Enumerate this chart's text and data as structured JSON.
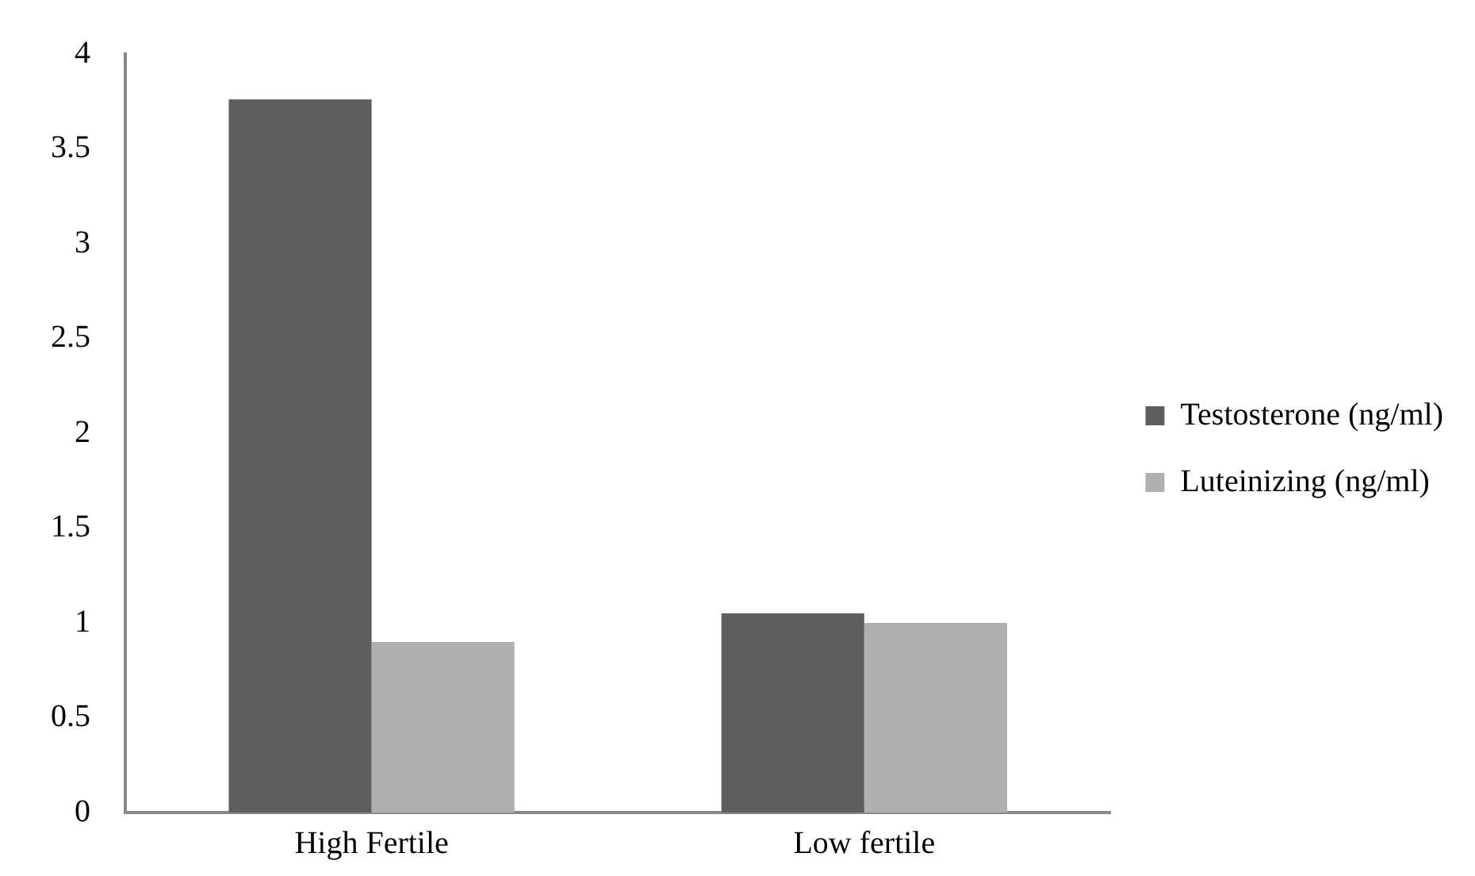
{
  "chart_data": {
    "type": "bar",
    "categories": [
      "High Fertile",
      "Low fertile"
    ],
    "series": [
      {
        "name": "Testosterone (ng/ml)",
        "color": "#5f5f5f",
        "values": [
          3.76,
          1.05
        ]
      },
      {
        "name": "Luteinizing (ng/ml)",
        "color": "#b0b0b0",
        "values": [
          0.9,
          1.0
        ]
      }
    ],
    "ylim": [
      0,
      4
    ],
    "yticks": [
      0,
      0.5,
      1,
      1.5,
      2,
      2.5,
      3,
      3.5,
      4
    ],
    "grid": false,
    "legend": "right"
  }
}
